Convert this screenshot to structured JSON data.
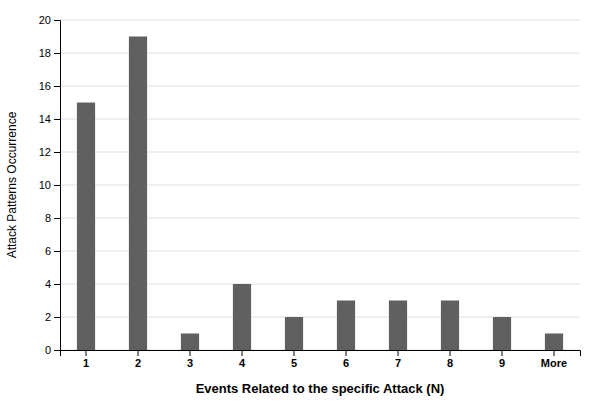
{
  "chart_data": {
    "type": "bar",
    "categories": [
      "1",
      "2",
      "3",
      "4",
      "5",
      "6",
      "7",
      "8",
      "9",
      "More"
    ],
    "values": [
      15,
      19,
      1,
      4,
      2,
      3,
      3,
      3,
      2,
      1
    ],
    "color": "#606060",
    "xlabel": "Events Related to the specific Attack (N)",
    "ylabel": "Attack Patterns Occurrence",
    "ylim": [
      0,
      20
    ],
    "yticks": [
      0,
      2,
      4,
      6,
      8,
      10,
      12,
      14,
      16,
      18,
      20
    ],
    "grid": true
  }
}
